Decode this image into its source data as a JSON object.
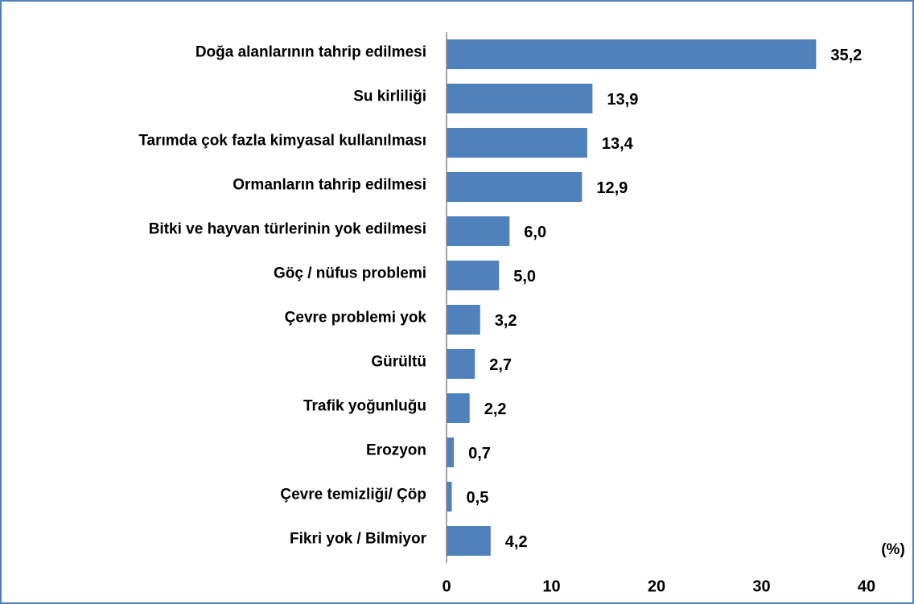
{
  "chart_data": {
    "type": "barh",
    "categories": [
      "Doğa alanlarının tahrip edilmesi",
      "Su kirliliği",
      "Tarımda çok fazla kimyasal kullanılması",
      "Ormanların tahrip edilmesi",
      "Bitki ve hayvan türlerinin yok edilmesi",
      "Göç / nüfus problemi",
      "Çevre problemi yok",
      "Gürültü",
      "Trafik yoğunluğu",
      "Erozyon",
      "Çevre temizliği/ Çöp",
      "Fikri yok / Bilmiyor"
    ],
    "values": [
      35.2,
      13.9,
      13.4,
      12.9,
      6.0,
      5.0,
      3.2,
      2.7,
      2.2,
      0.7,
      0.5,
      4.2
    ],
    "value_labels": [
      "35,2",
      "13,9",
      "13,4",
      "12,9",
      "6,0",
      "5,0",
      "3,2",
      "2,7",
      "2,2",
      "0,7",
      "0,5",
      "4,2"
    ],
    "color": "#4f81bd",
    "xlabel": "(%)",
    "xlim": [
      0,
      40
    ],
    "xticks": [
      0,
      10,
      20,
      30,
      40
    ],
    "grid": false
  }
}
